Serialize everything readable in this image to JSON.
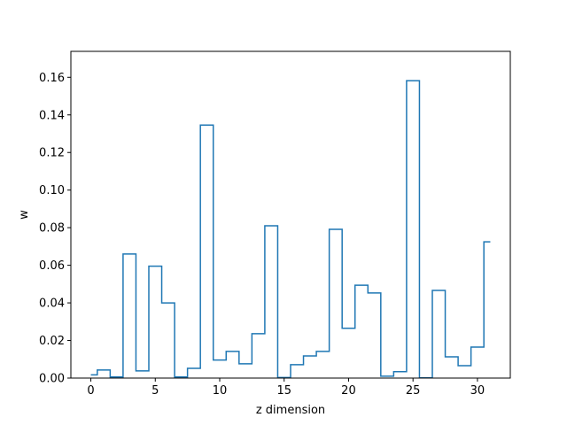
{
  "chart_data": {
    "type": "line",
    "drawstyle": "steps-mid",
    "title": "",
    "xlabel": "z dimension",
    "ylabel": "w",
    "xlim": [
      -1.55,
      32.55
    ],
    "ylim": [
      0,
      0.1738
    ],
    "xticks": [
      0,
      5,
      10,
      15,
      20,
      25,
      30
    ],
    "xtick_labels": [
      "0",
      "5",
      "10",
      "15",
      "20",
      "25",
      "30"
    ],
    "yticks": [
      0.0,
      0.02,
      0.04,
      0.06,
      0.08,
      0.1,
      0.12,
      0.14,
      0.16
    ],
    "ytick_labels": [
      "0.00",
      "0.02",
      "0.04",
      "0.06",
      "0.08",
      "0.10",
      "0.12",
      "0.14",
      "0.16"
    ],
    "grid": false,
    "series": [
      {
        "color": "#1f77b4",
        "x": [
          0,
          1,
          2,
          3,
          4,
          5,
          6,
          7,
          8,
          9,
          10,
          11,
          12,
          13,
          14,
          15,
          16,
          17,
          18,
          19,
          20,
          21,
          22,
          23,
          24,
          25,
          26,
          27,
          28,
          29,
          30,
          31
        ],
        "y": [
          0.0017,
          0.0043,
          0.0006,
          0.066,
          0.0038,
          0.0595,
          0.04,
          0.0006,
          0.0052,
          0.1346,
          0.0096,
          0.0142,
          0.0076,
          0.0236,
          0.081,
          0.0003,
          0.0071,
          0.0118,
          0.0142,
          0.0791,
          0.0265,
          0.0494,
          0.0453,
          0.001,
          0.0034,
          0.1582,
          0.0001,
          0.0466,
          0.0113,
          0.0066,
          0.0165,
          0.0725
        ]
      }
    ]
  }
}
